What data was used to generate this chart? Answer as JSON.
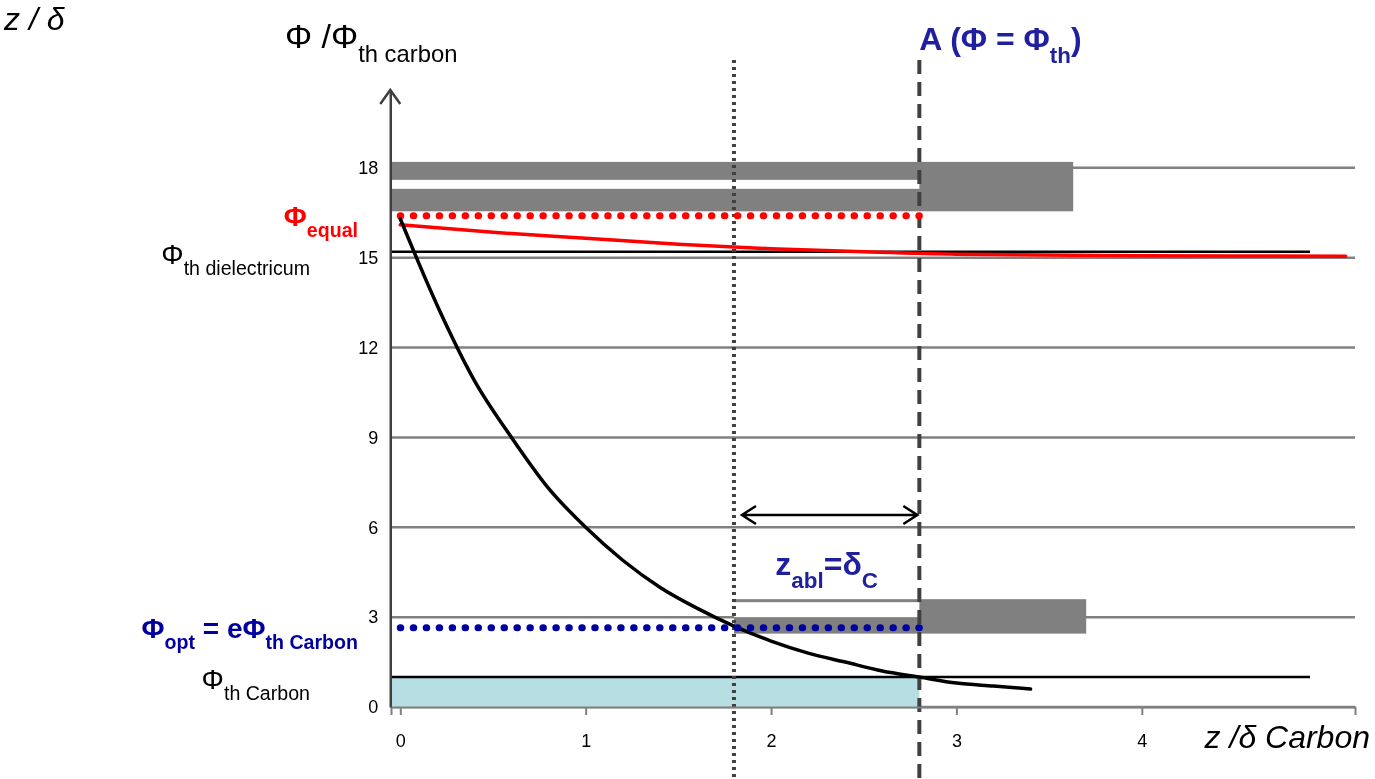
{
  "chart_data": {
    "type": "line",
    "ylabel": "Φ /Φ$_{th carbon}$",
    "xlabel": "z /δ Carbon",
    "annotations": [
      "z / δ",
      "z$_{abl}$=δ$_{C}$"
    ],
    "xlim": [
      -0.05,
      5.15
    ],
    "ylim": [
      0,
      20.6
    ],
    "xticks": [
      0,
      1,
      2,
      3,
      4
    ],
    "yticks": [
      0,
      3,
      6,
      9,
      12,
      15,
      18
    ],
    "grid": "y",
    "series": [
      {
        "type": "area",
        "color": "#b7dfe3",
        "x": [
          -0.05,
          2.8
        ],
        "values": [
          1,
          1
        ]
      },
      {
        "name": "Φ$_{equal}$",
        "color": "#ff0000",
        "line_style": "dotted",
        "x": [
          0,
          2.8
        ],
        "values": [
          16.4,
          16.4
        ]
      },
      {
        "color": "#ff0000",
        "line_style": "solid",
        "x": [
          0,
          0.5,
          1,
          1.5,
          2,
          2.5,
          3,
          4,
          5.1
        ],
        "values": [
          16.1,
          15.85,
          15.65,
          15.45,
          15.3,
          15.2,
          15.12,
          15.07,
          15.05
        ]
      },
      {
        "color": "#000000",
        "line_style": "solid",
        "x": [
          0,
          0.2,
          0.4,
          0.6,
          0.8,
          1,
          1.2,
          1.4,
          1.6,
          1.8,
          2,
          2.2,
          2.4,
          2.6,
          2.8,
          3,
          3.2,
          3.4
        ],
        "values": [
          16.3,
          13.4,
          10.9,
          9,
          7.3,
          6,
          4.9,
          4,
          3.3,
          2.7,
          2.2,
          1.8,
          1.5,
          1.2,
          1,
          0.8,
          0.7,
          0.6
        ]
      },
      {
        "name": "Φ$_{opt}$ = eΦ$_{th Carbon}$",
        "color": "#0000a0",
        "line_style": "dotted",
        "x": [
          0,
          2.8
        ],
        "values": [
          2.65,
          2.65
        ]
      }
    ],
    "ref_lines": [
      {
        "axis": "y",
        "value": 15.2,
        "label": "Φ$_{th dielectricum}$",
        "color": "#000000"
      },
      {
        "axis": "y",
        "value": 1,
        "label": "Φ$_{th Carbon}$",
        "color": "#000000"
      },
      {
        "axis": "x",
        "value": 2.8,
        "label": "A (Φ = Φ$_{th}$)",
        "color": "#404040",
        "line_style": "dashed"
      },
      {
        "axis": "x",
        "value": 1.8,
        "color": "#404040",
        "line_style": "dotted"
      }
    ]
  }
}
